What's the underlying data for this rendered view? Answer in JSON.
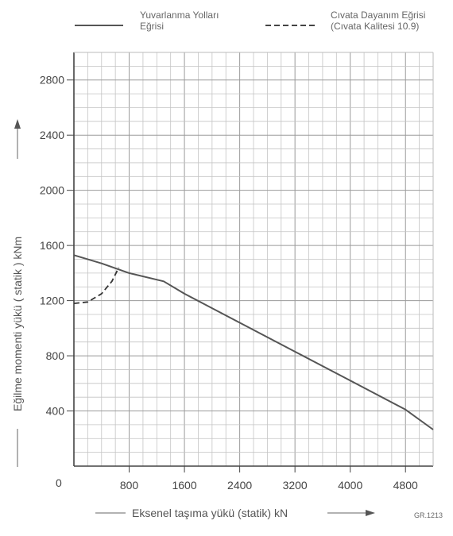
{
  "chart_data": {
    "type": "line",
    "xlabel": "Eksenel taşıma yükü  (statik) kN",
    "ylabel": "Eğilme momenti yükü  ( statik )  kNm",
    "xlim": [
      0,
      5200
    ],
    "ylim": [
      0,
      3000
    ],
    "x_ticks": [
      800,
      1600,
      2400,
      3200,
      4000,
      4800
    ],
    "y_ticks": [
      400,
      800,
      1200,
      1600,
      2000,
      2400,
      2800
    ],
    "origin_label": "0",
    "grid": true,
    "legend_position": "top",
    "series": [
      {
        "name_line1": "Yuvarlanma Yolları",
        "name_line2": "Eğrisi",
        "style": "solid",
        "x": [
          0,
          400,
          800,
          1300,
          1600,
          2400,
          3200,
          4000,
          4800,
          5200
        ],
        "y": [
          1530,
          1470,
          1400,
          1340,
          1250,
          1040,
          830,
          620,
          410,
          265
        ]
      },
      {
        "name_line1": "Cıvata Dayanım Eğrisi",
        "name_line2": "(Cıvata Kalitesi 10.9)",
        "style": "dashed",
        "x": [
          0,
          200,
          400,
          550,
          650
        ],
        "y": [
          1180,
          1190,
          1250,
          1340,
          1440
        ]
      }
    ],
    "code": "GR.1213"
  }
}
